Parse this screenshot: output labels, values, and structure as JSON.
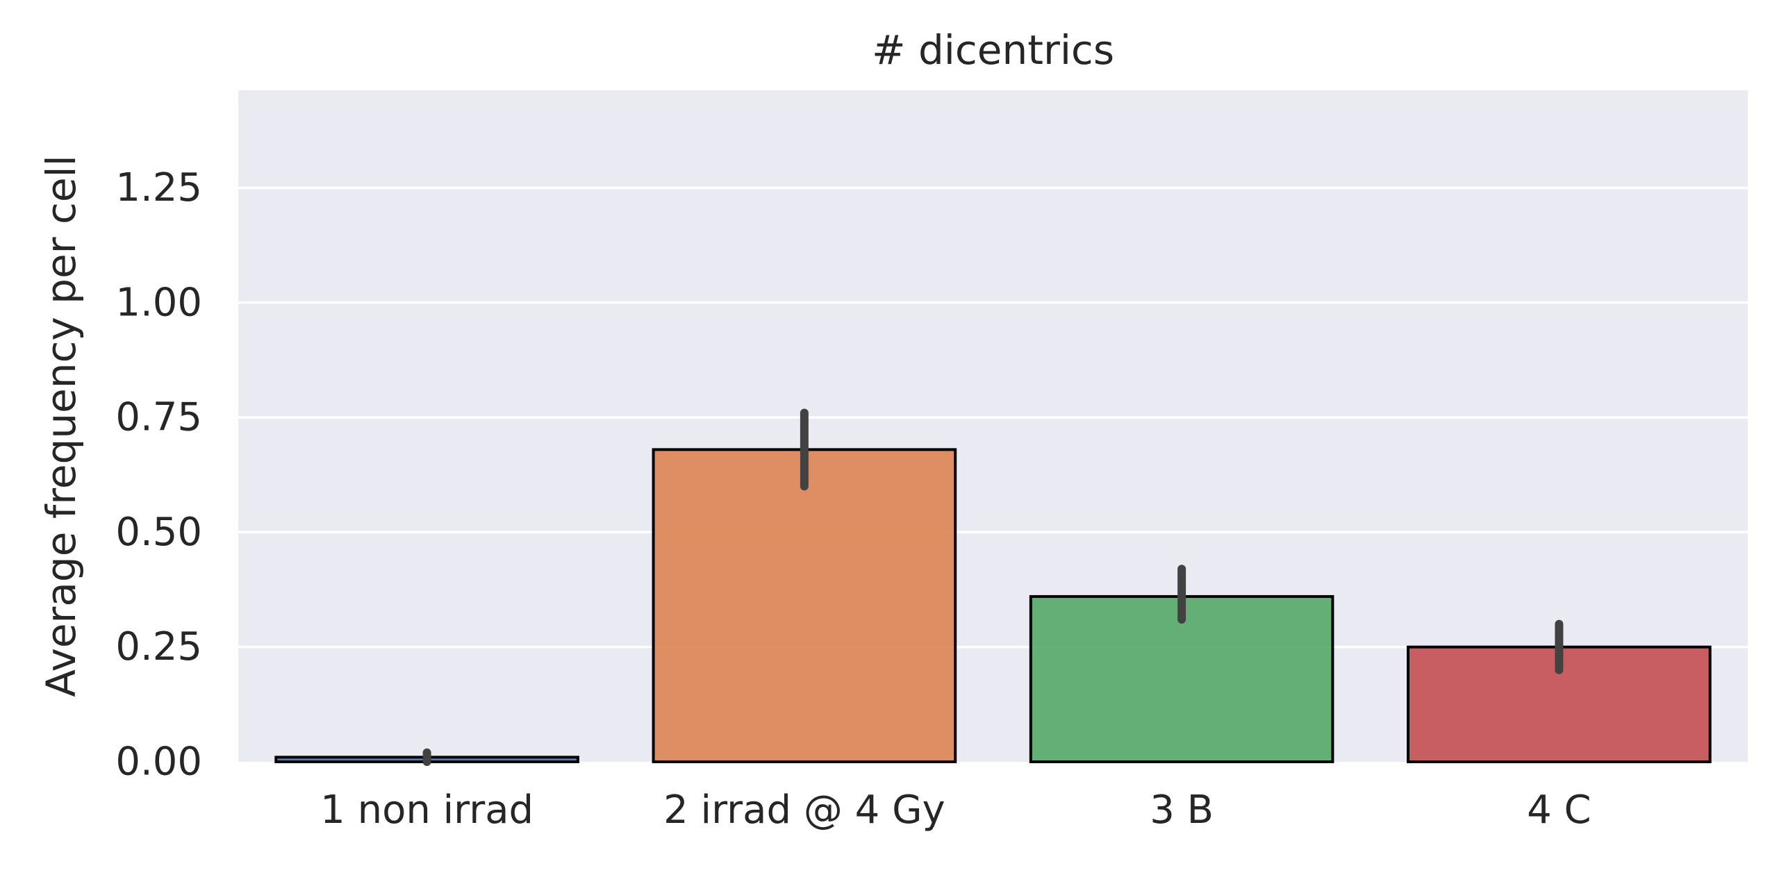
{
  "chart_data": {
    "type": "bar",
    "title": "# dicentrics",
    "xlabel": "",
    "ylabel": "Average frequency per cell",
    "categories": [
      "1 non irrad",
      "2 irrad @ 4 Gy",
      "3 B",
      "4 C"
    ],
    "values": [
      0.01,
      0.68,
      0.36,
      0.25
    ],
    "error_low": [
      0.0,
      0.6,
      0.31,
      0.2
    ],
    "error_high": [
      0.02,
      0.76,
      0.42,
      0.3
    ],
    "colors": [
      "#4c72b0",
      "#dd8452",
      "#55a868",
      "#c44e52"
    ],
    "bar_alpha": 0.9,
    "ylim": [
      0,
      1.4625
    ],
    "yticks": [
      0,
      0.25,
      0.5,
      0.75,
      1.0,
      1.25
    ],
    "ytick_labels": [
      "0.00",
      "0.25",
      "0.50",
      "0.75",
      "1.00",
      "1.25"
    ],
    "grid": true,
    "grid_axis": "y",
    "background": "#eaeaf2",
    "error_color": "#424242",
    "edge_color": "#000000"
  }
}
